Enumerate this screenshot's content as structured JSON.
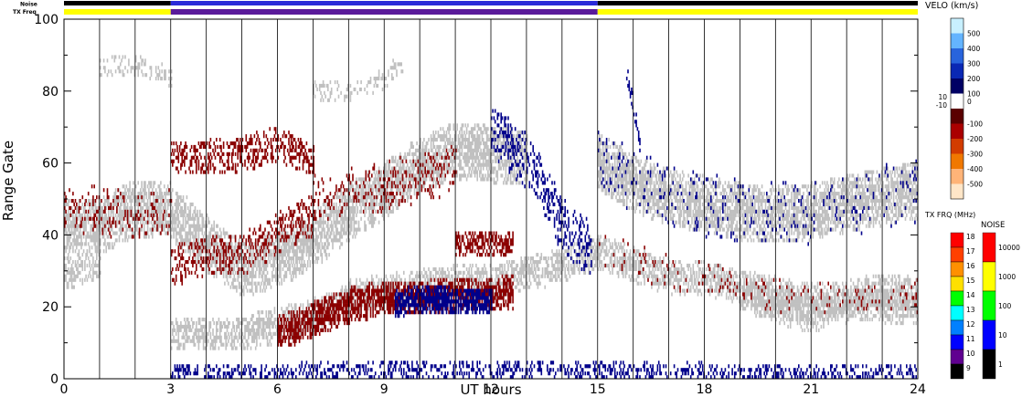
{
  "strip": {
    "noise_label": "Noise",
    "txfreq_label": "TX Freq"
  },
  "chart_data": {
    "type": "heatmap",
    "title": "",
    "xlabel": "UT hours",
    "ylabel": "Range Gate",
    "xlim": [
      0,
      24
    ],
    "ylim": [
      0,
      100
    ],
    "x_ticks": [
      "0",
      "3",
      "6",
      "9",
      "12",
      "15",
      "18",
      "21",
      "24"
    ],
    "y_ticks": [
      "0",
      "20",
      "40",
      "60",
      "80",
      "100"
    ],
    "noise_strip": [
      {
        "start": 0,
        "end": 3,
        "color": "#000000"
      },
      {
        "start": 3,
        "end": 15,
        "color": "#2a2ad8"
      },
      {
        "start": 15,
        "end": 24,
        "color": "#000000"
      }
    ],
    "txfreq_strip": [
      {
        "start": 0,
        "end": 3,
        "color": "#ffff00"
      },
      {
        "start": 3,
        "end": 15,
        "color": "#5a1a9a"
      },
      {
        "start": 15,
        "end": 24,
        "color": "#ffff00"
      }
    ],
    "colors": {
      "ground_scatter": "#c0c0c0",
      "negative_velocity": "#8b0000",
      "positive_velocity": "#00008b"
    },
    "scatter_bands": [
      {
        "category": "ground_scatter",
        "points": [
          [
            0,
            42
          ],
          [
            1,
            42
          ],
          [
            2,
            47
          ],
          [
            3,
            46
          ],
          [
            4,
            37
          ],
          [
            5,
            30
          ],
          [
            6,
            33
          ],
          [
            7,
            38
          ],
          [
            8,
            46
          ],
          [
            9,
            52
          ],
          [
            10,
            59
          ],
          [
            11,
            63
          ],
          [
            12,
            62
          ],
          [
            13,
            61
          ]
        ],
        "halfwidth": 7,
        "density": 0.7
      },
      {
        "category": "ground_scatter",
        "points": [
          [
            0,
            29
          ],
          [
            1,
            32
          ]
        ],
        "halfwidth": 4,
        "density": 0.5
      },
      {
        "category": "ground_scatter",
        "points": [
          [
            15,
            60
          ],
          [
            16,
            54
          ],
          [
            17,
            50
          ],
          [
            18,
            48
          ],
          [
            19,
            46
          ],
          [
            20,
            45
          ],
          [
            21,
            46
          ],
          [
            22,
            48
          ],
          [
            23,
            50
          ],
          [
            24,
            52
          ]
        ],
        "halfwidth": 7,
        "density": 0.72
      },
      {
        "category": "ground_scatter",
        "points": [
          [
            15,
            35
          ],
          [
            16,
            31
          ],
          [
            17,
            28
          ],
          [
            18,
            27
          ],
          [
            19,
            25
          ],
          [
            20,
            23
          ],
          [
            21,
            21
          ],
          [
            22,
            22
          ],
          [
            23,
            24
          ],
          [
            24,
            23
          ]
        ],
        "halfwidth": 4,
        "density": 0.6
      },
      {
        "category": "ground_scatter",
        "points": [
          [
            3,
            12
          ],
          [
            5,
            12
          ],
          [
            7,
            17
          ],
          [
            8,
            22
          ],
          [
            9,
            24
          ],
          [
            10,
            25
          ],
          [
            11,
            27
          ],
          [
            12,
            26
          ],
          [
            13,
            29
          ],
          [
            14,
            31
          ],
          [
            15,
            35
          ]
        ],
        "halfwidth": 4,
        "density": 0.55
      },
      {
        "category": "ground_scatter",
        "points": [
          [
            19,
            23
          ],
          [
            20,
            20
          ],
          [
            21,
            17
          ],
          [
            22,
            20
          ],
          [
            23,
            20
          ],
          [
            24,
            19
          ]
        ],
        "halfwidth": 4,
        "density": 0.6
      },
      {
        "category": "ground_scatter",
        "points": [
          [
            1,
            86
          ],
          [
            2,
            87
          ],
          [
            3,
            83
          ]
        ],
        "halfwidth": 2,
        "density": 0.3
      },
      {
        "category": "ground_scatter",
        "points": [
          [
            7,
            80
          ],
          [
            8,
            79
          ],
          [
            9,
            83
          ],
          [
            9.5,
            88
          ]
        ],
        "halfwidth": 2,
        "density": 0.3
      },
      {
        "category": "negative_velocity",
        "points": [
          [
            3,
            61
          ],
          [
            4,
            61
          ],
          [
            5,
            62
          ],
          [
            6,
            65
          ],
          [
            7,
            60
          ]
        ],
        "halfwidth": 4,
        "density": 0.45
      },
      {
        "category": "negative_velocity",
        "points": [
          [
            3,
            31
          ],
          [
            4,
            34
          ],
          [
            5,
            34
          ],
          [
            6,
            40
          ],
          [
            7,
            45
          ]
        ],
        "halfwidth": 5,
        "density": 0.35
      },
      {
        "category": "negative_velocity",
        "points": [
          [
            6,
            12
          ],
          [
            7,
            16
          ],
          [
            8,
            20
          ],
          [
            9,
            22
          ],
          [
            10,
            22
          ],
          [
            11,
            23
          ],
          [
            12,
            23
          ],
          [
            12.6,
            24
          ]
        ],
        "halfwidth": 4,
        "density": 0.75
      },
      {
        "category": "negative_velocity",
        "points": [
          [
            11,
            37
          ],
          [
            12,
            37
          ],
          [
            12.6,
            37
          ]
        ],
        "halfwidth": 3,
        "density": 0.6
      },
      {
        "category": "negative_velocity",
        "points": [
          [
            0,
            47
          ],
          [
            1,
            46
          ],
          [
            2,
            45
          ],
          [
            3,
            46
          ]
        ],
        "halfwidth": 6,
        "density": 0.18
      },
      {
        "category": "negative_velocity",
        "points": [
          [
            7,
            50
          ],
          [
            9,
            53
          ],
          [
            11,
            58
          ]
        ],
        "halfwidth": 6,
        "density": 0.18
      },
      {
        "category": "positive_velocity",
        "points": [
          [
            9.3,
            20
          ],
          [
            10,
            22
          ],
          [
            11,
            21
          ],
          [
            12,
            21
          ]
        ],
        "halfwidth": 3,
        "density": 0.75
      },
      {
        "category": "positive_velocity",
        "points": [
          [
            12,
            68
          ],
          [
            13,
            60
          ],
          [
            13.5,
            52
          ],
          [
            14,
            42
          ],
          [
            14.8,
            35
          ]
        ],
        "halfwidth": 7,
        "density": 0.35
      },
      {
        "category": "positive_velocity",
        "points": [
          [
            3,
            1
          ],
          [
            6,
            1
          ],
          [
            9,
            2
          ],
          [
            12,
            2
          ],
          [
            15,
            2
          ],
          [
            18,
            1
          ],
          [
            21,
            1
          ],
          [
            24,
            1
          ]
        ],
        "halfwidth": 2,
        "density": 0.35
      },
      {
        "category": "positive_velocity",
        "points": [
          [
            15,
            62
          ],
          [
            16,
            54
          ],
          [
            17,
            50
          ],
          [
            18,
            48
          ],
          [
            19,
            46
          ],
          [
            20,
            45
          ],
          [
            21,
            46
          ],
          [
            22,
            48
          ],
          [
            23,
            50
          ],
          [
            24,
            52
          ]
        ],
        "halfwidth": 8,
        "density": 0.07
      },
      {
        "category": "positive_velocity",
        "points": [
          [
            15.8,
            85
          ],
          [
            16,
            75
          ],
          [
            16.2,
            62
          ]
        ],
        "halfwidth": 2,
        "density": 0.4
      },
      {
        "category": "negative_velocity",
        "points": [
          [
            15,
            35
          ],
          [
            18,
            27
          ],
          [
            21,
            21
          ],
          [
            24,
            23
          ]
        ],
        "halfwidth": 4,
        "density": 0.08
      }
    ],
    "velocity_scale": {
      "title": "VELO (km/s)",
      "ticks": [
        "500",
        "400",
        "300",
        "200",
        "100",
        "0",
        "-100",
        "-200",
        "-300",
        "-400",
        "-500"
      ],
      "side_labels": [
        "10",
        "-10"
      ],
      "colors": [
        "#c8f0ff",
        "#64b4ff",
        "#2864dc",
        "#0a28b4",
        "#000064",
        "#ffffff",
        "#5a0000",
        "#aa0000",
        "#d23c00",
        "#f07800",
        "#ffb478",
        "#ffe6c8"
      ]
    },
    "txfreq_scale": {
      "title": "TX FRQ (MHz)",
      "ticks": [
        "18",
        "17",
        "16",
        "15",
        "14",
        "13",
        "12",
        "11",
        "10",
        "9"
      ],
      "colors": [
        "#ff0000",
        "#ff4000",
        "#ff9000",
        "#ffe000",
        "#00ff00",
        "#00ffff",
        "#0080ff",
        "#0000ff",
        "#600090",
        "#000000"
      ]
    },
    "noise_scale": {
      "title": "NOISE",
      "ticks": [
        "10000",
        "1000",
        "100",
        "10",
        "1"
      ],
      "colors": [
        "#ff0000",
        "#ffff00",
        "#00ff00",
        "#0000ff",
        "#000000"
      ]
    }
  }
}
